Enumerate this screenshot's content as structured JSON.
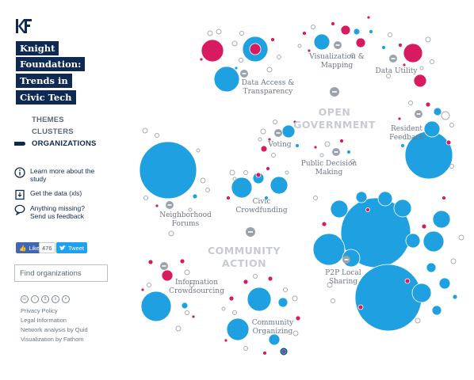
{
  "sidebar": {
    "logo_icon": "kf-logo-icon",
    "title_lines": [
      "Knight",
      "Foundation:",
      "Trends in",
      "Civic Tech"
    ],
    "nav": [
      {
        "label": "THEMES",
        "active": false
      },
      {
        "label": "CLUSTERS",
        "active": false
      },
      {
        "label": "ORGANIZATIONS",
        "active": true
      }
    ],
    "links": [
      {
        "icon": "info-icon",
        "label": "Learn more about the study"
      },
      {
        "icon": "download-icon",
        "label": "Get the data (xls)"
      },
      {
        "icon": "speech-bubble-icon",
        "label": "Anything missing? Send us feedback"
      }
    ],
    "social": {
      "like_label": "Like",
      "like_count": "476",
      "tweet_label": "Tweet"
    },
    "search_placeholder": "Find organizations",
    "footer_links": [
      "Privacy Policy",
      "Legal Information",
      "Network analysis by Quid",
      "Visualization by Fathom"
    ]
  },
  "colors": {
    "navy": "#0f2a52",
    "blue": "#1fa0e0",
    "magenta": "#d81b60",
    "grey_ring": "#a6adb4",
    "theme_label": "#c7ccd2"
  },
  "themes": [
    "OPEN GOVERNMENT",
    "COMMUNITY ACTION"
  ],
  "clusters": [
    {
      "name": "Data Access & Transparency"
    },
    {
      "name": "Visualization & Mapping"
    },
    {
      "name": "Data Utility"
    },
    {
      "name": "Resident Feedback"
    },
    {
      "name": "Voting"
    },
    {
      "name": "Public Decision Making"
    },
    {
      "name": "Civic Crowdfunding"
    },
    {
      "name": "Neighborhood Forums"
    },
    {
      "name": "P2P Local Sharing"
    },
    {
      "name": "Information Crowdsourcing"
    },
    {
      "name": "Community Organizing"
    }
  ]
}
